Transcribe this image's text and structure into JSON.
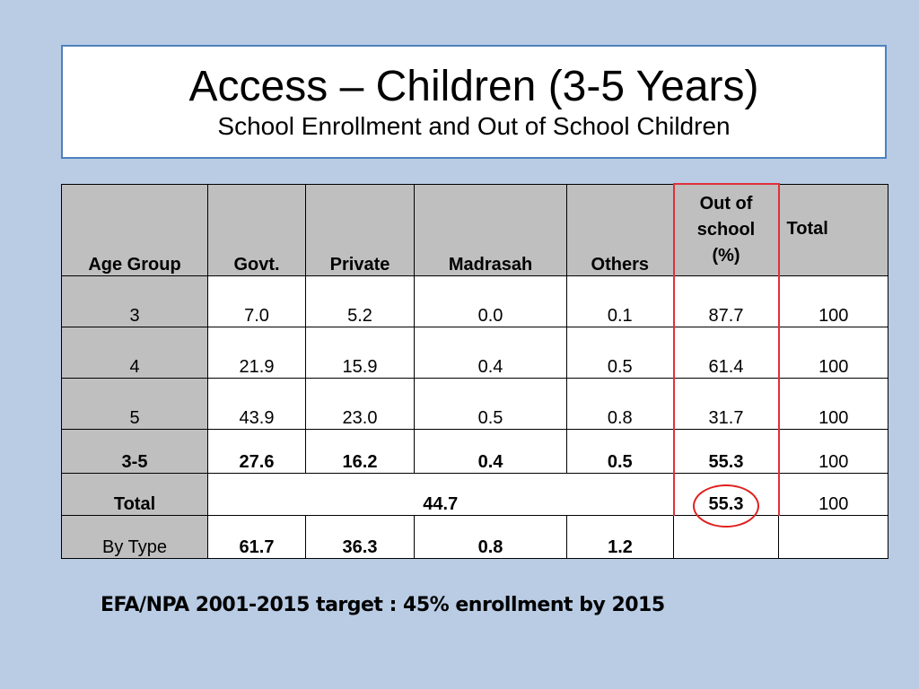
{
  "title": {
    "main": "Access – Children (3-5 Years)",
    "sub": "School Enrollment and Out of School Children"
  },
  "table": {
    "headers": [
      "Age Group",
      "Govt.",
      "Private",
      "Madrasah",
      "Others",
      "Out of school (%)",
      "Total"
    ],
    "header_out_of_school_lines": [
      "Out of",
      "school",
      "(%)"
    ],
    "rows": [
      {
        "age": "3",
        "govt": "7.0",
        "private": "5.2",
        "madrasah": "0.0",
        "others": "0.1",
        "out_of_school": "87.7",
        "total": "100"
      },
      {
        "age": "4",
        "govt": "21.9",
        "private": "15.9",
        "madrasah": "0.4",
        "others": "0.5",
        "out_of_school": "61.4",
        "total": "100"
      },
      {
        "age": "5",
        "govt": "43.9",
        "private": "23.0",
        "madrasah": "0.5",
        "others": "0.8",
        "out_of_school": "31.7",
        "total": "100"
      },
      {
        "age": "3-5",
        "govt": "27.6",
        "private": "16.2",
        "madrasah": "0.4",
        "others": "0.5",
        "out_of_school": "55.3",
        "total": "100"
      }
    ],
    "total_row": {
      "label": "Total",
      "enrolled": "44.7",
      "out_of_school": "55.3",
      "total": "100"
    },
    "by_type_row": {
      "label": "By Type",
      "govt": "61.7",
      "private": "36.3",
      "madrasah": "0.8",
      "others": "1.2"
    }
  },
  "footer": "EFA/NPA 2001-2015 target : 45% enrollment by 2015",
  "colors": {
    "background": "#b9cce4",
    "title_border": "#4f81bd",
    "gray_cell": "#bfbfbf",
    "highlight_red": "#e0303a"
  }
}
